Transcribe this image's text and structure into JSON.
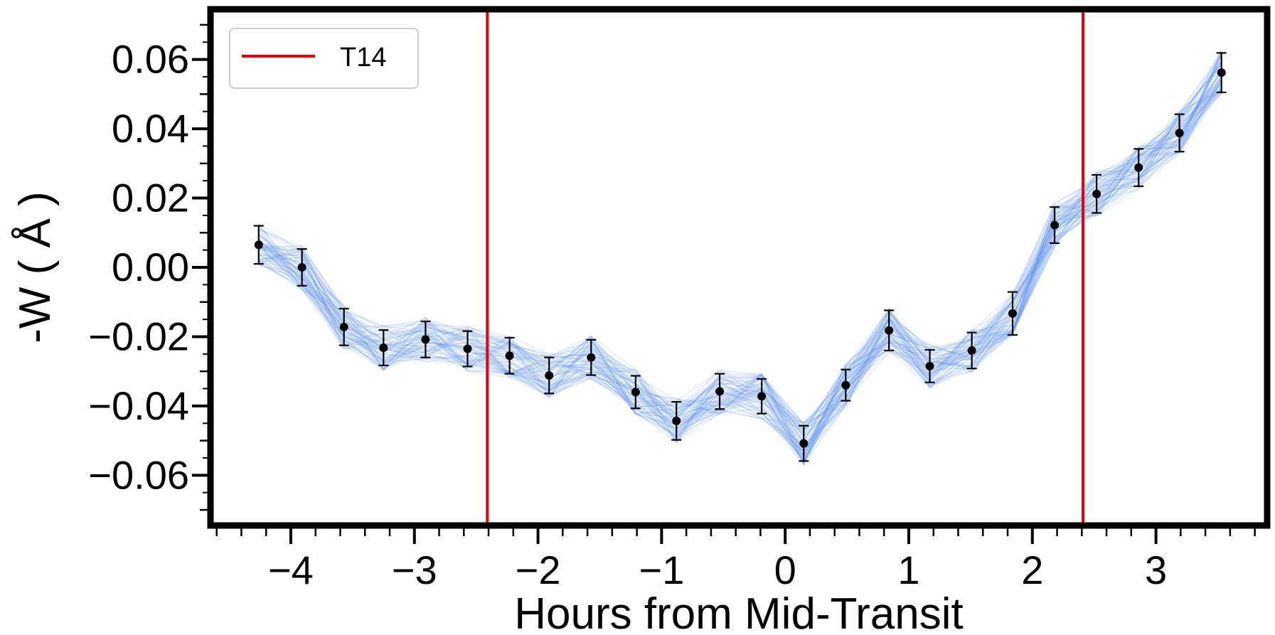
{
  "chart_data": {
    "type": "line",
    "title": "",
    "xlabel": "Hours from Mid-Transit",
    "ylabel": "-W ( Å )",
    "xlim": [
      -4.65,
      3.9
    ],
    "ylim": [
      -0.0745,
      0.0745
    ],
    "xticks": [
      -4,
      -3,
      -2,
      -1,
      0,
      1,
      2,
      3
    ],
    "xtick_labels": [
      "−4",
      "−3",
      "−2",
      "−1",
      "0",
      "1",
      "2",
      "3"
    ],
    "yticks": [
      0.06,
      0.04,
      0.02,
      0.0,
      -0.02,
      -0.04,
      -0.06
    ],
    "ytick_labels": [
      "0.06",
      "0.04",
      "0.02",
      "0.00",
      "−0.02",
      "−0.04",
      "−0.06"
    ],
    "grid": false,
    "legend": {
      "position": "top-left",
      "entries": [
        {
          "label": "T14",
          "color": "#e8000b"
        }
      ]
    },
    "vlines": [
      {
        "x": -2.41,
        "color": "#e8000b"
      },
      {
        "x": 2.41,
        "color": "#e8000b"
      }
    ],
    "series": [
      {
        "style": "points-with-errorbars",
        "color": "#000000",
        "x": [
          -4.26,
          -3.91,
          -3.57,
          -3.25,
          -2.91,
          -2.57,
          -2.23,
          -1.91,
          -1.57,
          -1.21,
          -0.88,
          -0.53,
          -0.19,
          0.15,
          0.49,
          0.84,
          1.17,
          1.51,
          1.84,
          2.18,
          2.52,
          2.86,
          3.19,
          3.53
        ],
        "y": [
          0.0065,
          0.0,
          -0.0172,
          -0.0232,
          -0.0208,
          -0.0235,
          -0.0255,
          -0.0312,
          -0.026,
          -0.036,
          -0.0443,
          -0.0358,
          -0.0372,
          -0.0508,
          -0.034,
          -0.0182,
          -0.0285,
          -0.024,
          -0.0133,
          0.0122,
          0.0212,
          0.0288,
          0.0388,
          0.0562
        ],
        "yerr": [
          0.0055,
          0.0053,
          0.0053,
          0.0051,
          0.0052,
          0.0051,
          0.0052,
          0.0052,
          0.0051,
          0.0047,
          0.0055,
          0.0051,
          0.005,
          0.0051,
          0.0045,
          0.0058,
          0.0047,
          0.0052,
          0.0062,
          0.0052,
          0.0055,
          0.0054,
          0.0054,
          0.0057
        ]
      },
      {
        "style": "model-draws",
        "color": "#6495ed",
        "x": [
          -4.26,
          -3.91,
          -3.57,
          -3.25,
          -2.91,
          -2.57,
          -2.23,
          -1.91,
          -1.57,
          -1.21,
          -0.88,
          -0.53,
          -0.19,
          0.15,
          0.49,
          0.84,
          1.17,
          1.51,
          1.84,
          2.18,
          2.52,
          2.86,
          3.19,
          3.53
        ],
        "draw_count": 70,
        "spread": 0.0065
      }
    ]
  }
}
